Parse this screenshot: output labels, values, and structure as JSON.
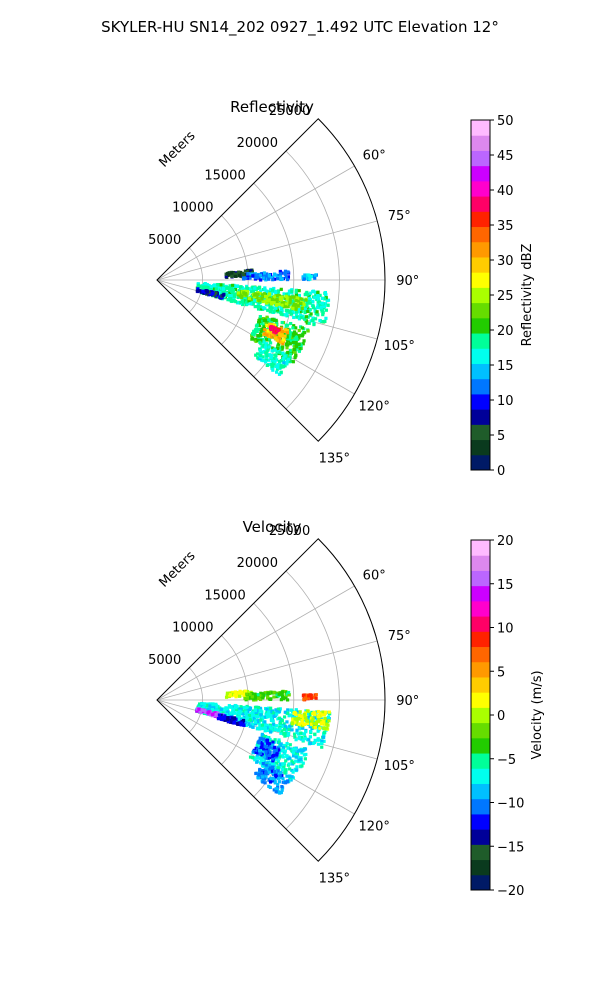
{
  "figure": {
    "suptitle": "SKYLER-HU  SN14_202  0927_1.492 UTC Elevation 12°"
  },
  "chart_data": [
    {
      "type": "heatmap",
      "projection": "polar-sector",
      "title": "Reflectivity",
      "radial_label": "Meters",
      "range_ticks": [
        5000,
        10000,
        15000,
        20000,
        25000
      ],
      "range_tick_labels": [
        "5000",
        "10000",
        "15000",
        "20000",
        "25000"
      ],
      "range_max": 25000,
      "azimuth_range": [
        45,
        135
      ],
      "azimuth_ticks": [
        60,
        75,
        90,
        105,
        120,
        135
      ],
      "azimuth_tick_labels": [
        "60°",
        "75°",
        "90°",
        "105°",
        "120°",
        "135°"
      ],
      "grid": true,
      "colorbar": {
        "label": "Reflectivity dBZ",
        "vmin": 0,
        "vmax": 50,
        "ticks": [
          0,
          5,
          10,
          15,
          20,
          25,
          30,
          35,
          40,
          45,
          50
        ],
        "tick_labels": [
          "0",
          "5",
          "10",
          "15",
          "20",
          "25",
          "30",
          "35",
          "40",
          "45",
          "50"
        ],
        "colors": [
          "#001a66",
          "#0a3a1e",
          "#1f5c2a",
          "#000099",
          "#0000ff",
          "#0077ff",
          "#00c0ff",
          "#00ffee",
          "#00ff99",
          "#22cc00",
          "#66dd00",
          "#aaff00",
          "#ffff00",
          "#ffcc00",
          "#ff9900",
          "#ff6600",
          "#ff2200",
          "#ff0066",
          "#ff00cc",
          "#cc00ff",
          "#bb66ff",
          "#dd88ee",
          "#ffbbff"
        ]
      },
      "regions": [
        {
          "az": [
            84,
            88
          ],
          "r": [
            7500,
            10500
          ],
          "value": 5
        },
        {
          "az": [
            86,
            90
          ],
          "r": [
            9500,
            14500
          ],
          "value": 12
        },
        {
          "az": [
            88,
            90
          ],
          "r": [
            16000,
            17500
          ],
          "value": 14
        },
        {
          "az": [
            94,
            106
          ],
          "r": [
            4500,
            19000
          ],
          "value": 18
        },
        {
          "az": [
            97,
            102
          ],
          "r": [
            9000,
            16500
          ],
          "value": 24
        },
        {
          "az": [
            102,
            106
          ],
          "r": [
            4500,
            7500
          ],
          "value": 8
        },
        {
          "az": [
            108,
            122
          ],
          "r": [
            12000,
            17500
          ],
          "value": 20
        },
        {
          "az": [
            111,
            117
          ],
          "r": [
            13000,
            15500
          ],
          "value": 30
        },
        {
          "az": [
            112,
            114
          ],
          "r": [
            13500,
            14500
          ],
          "value": 37
        },
        {
          "az": [
            120,
            128
          ],
          "r": [
            13500,
            17000
          ],
          "value": 17
        }
      ]
    },
    {
      "type": "heatmap",
      "projection": "polar-sector",
      "title": "Velocity",
      "radial_label": "Meters",
      "range_ticks": [
        5000,
        10000,
        15000,
        20000,
        25000
      ],
      "range_tick_labels": [
        "5000",
        "10000",
        "15000",
        "20000",
        "25000"
      ],
      "range_max": 25000,
      "azimuth_range": [
        45,
        135
      ],
      "azimuth_ticks": [
        60,
        75,
        90,
        105,
        120,
        135
      ],
      "azimuth_tick_labels": [
        "60°",
        "75°",
        "90°",
        "105°",
        "120°",
        "135°"
      ],
      "grid": true,
      "colorbar": {
        "label": "Velocity (m/s)",
        "vmin": -20,
        "vmax": 20,
        "ticks": [
          -20,
          -15,
          -10,
          -5,
          0,
          5,
          10,
          15,
          20
        ],
        "tick_labels": [
          "−20",
          "−15",
          "−10",
          "−5",
          "0",
          "5",
          "10",
          "15",
          "20"
        ],
        "colors": [
          "#001a66",
          "#0a3a1e",
          "#1f5c2a",
          "#000099",
          "#0000ff",
          "#0077ff",
          "#00c0ff",
          "#00ffee",
          "#00ff99",
          "#22cc00",
          "#66dd00",
          "#aaff00",
          "#ffff00",
          "#ffcc00",
          "#ff9900",
          "#ff6600",
          "#ff2200",
          "#ff0066",
          "#ff00cc",
          "#cc00ff",
          "#bb66ff",
          "#dd88ee",
          "#ffbbff"
        ]
      },
      "regions": [
        {
          "az": [
            84,
            88
          ],
          "r": [
            7500,
            10500
          ],
          "value": 1
        },
        {
          "az": [
            86,
            90
          ],
          "r": [
            9500,
            14500
          ],
          "value": -3
        },
        {
          "az": [
            88,
            90
          ],
          "r": [
            16000,
            17500
          ],
          "value": 8
        },
        {
          "az": [
            94,
            106
          ],
          "r": [
            4500,
            19000
          ],
          "value": -7
        },
        {
          "az": [
            94,
            100
          ],
          "r": [
            15000,
            19000
          ],
          "value": 1
        },
        {
          "az": [
            102,
            106
          ],
          "r": [
            4500,
            7500
          ],
          "value": 15
        },
        {
          "az": [
            103,
            107
          ],
          "r": [
            7000,
            10000
          ],
          "value": -13
        },
        {
          "az": [
            108,
            122
          ],
          "r": [
            12000,
            17500
          ],
          "value": -7
        },
        {
          "az": [
            110,
            118
          ],
          "r": [
            12000,
            14500
          ],
          "value": -11
        },
        {
          "az": [
            120,
            128
          ],
          "r": [
            13500,
            17000
          ],
          "value": -10
        }
      ]
    }
  ]
}
